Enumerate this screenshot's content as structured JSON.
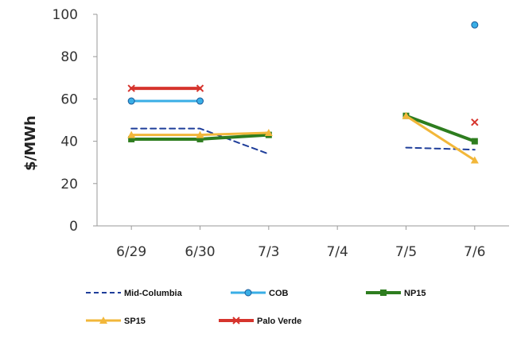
{
  "chart_data": {
    "type": "line",
    "ylabel": "$/MWh",
    "xlabel": "",
    "ylim": [
      0,
      100
    ],
    "yticks": [
      0,
      20,
      40,
      60,
      80,
      100
    ],
    "categories": [
      "6/29",
      "6/30",
      "7/3",
      "7/4",
      "7/5",
      "7/6"
    ],
    "grid": false,
    "legend_position": "bottom",
    "series": [
      {
        "name": "Mid-Columbia",
        "color": "#1f3e9a",
        "dash": true,
        "marker": "none",
        "values": [
          46,
          46,
          34,
          null,
          37,
          36
        ]
      },
      {
        "name": "COB",
        "color": "#39aee6",
        "dash": false,
        "marker": "circle",
        "values": [
          59,
          59,
          null,
          null,
          null,
          95
        ]
      },
      {
        "name": "NP15",
        "color": "#2e7d1f",
        "dash": false,
        "marker": "square",
        "values": [
          41,
          41,
          43,
          null,
          52,
          40
        ]
      },
      {
        "name": "SP15",
        "color": "#f2b73a",
        "dash": false,
        "marker": "triangle",
        "values": [
          43,
          43,
          44,
          null,
          52,
          31
        ]
      },
      {
        "name": "Palo Verde",
        "color": "#d6342d",
        "dash": false,
        "marker": "x",
        "values": [
          65,
          65,
          null,
          null,
          null,
          49
        ]
      }
    ]
  }
}
